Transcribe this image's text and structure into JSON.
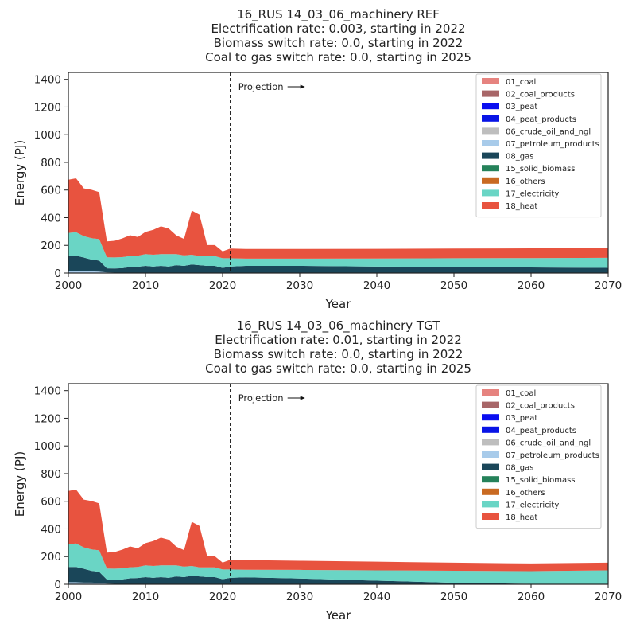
{
  "chart_data": [
    {
      "type": "area",
      "title_lines": [
        "16_RUS 14_03_06_machinery REF",
        "Electrification rate: 0.003, starting in 2022",
        "Biomass switch rate: 0.0, starting in 2022",
        "Coal to gas switch rate: 0.0, starting in 2025"
      ],
      "xlabel": "Year",
      "ylabel": "Energy (PJ)",
      "xlim": [
        2000,
        2070
      ],
      "ylim": [
        0,
        1450
      ],
      "xticks": [
        2000,
        2010,
        2020,
        2030,
        2040,
        2050,
        2060,
        2070
      ],
      "yticks": [
        0,
        200,
        400,
        600,
        800,
        1000,
        1200,
        1400
      ],
      "projection_year": 2021,
      "projection_label": "Projection",
      "legend_position": "top-right",
      "x": [
        2000,
        2001,
        2002,
        2003,
        2004,
        2005,
        2006,
        2007,
        2008,
        2009,
        2010,
        2011,
        2012,
        2013,
        2014,
        2015,
        2016,
        2017,
        2018,
        2019,
        2020,
        2021,
        2023,
        2030,
        2040,
        2050,
        2060,
        2070
      ],
      "series": [
        {
          "name": "01_coal",
          "color": "#e6837f",
          "values": [
            0,
            0,
            0,
            0,
            0,
            0,
            0,
            0,
            0,
            0,
            0,
            0,
            0,
            0,
            0,
            0,
            0,
            0,
            0,
            0,
            0,
            0,
            0,
            0,
            0,
            0,
            0,
            0
          ]
        },
        {
          "name": "02_coal_products",
          "color": "#a86668",
          "values": [
            0,
            0,
            0,
            0,
            0,
            0,
            0,
            0,
            0,
            0,
            0,
            0,
            0,
            0,
            0,
            0,
            0,
            0,
            0,
            0,
            0,
            0,
            0,
            0,
            0,
            0,
            0,
            0
          ]
        },
        {
          "name": "03_peat",
          "color": "#0a0ef0",
          "values": [
            0,
            0,
            0,
            0,
            0,
            0,
            0,
            0,
            0,
            0,
            0,
            0,
            0,
            0,
            0,
            0,
            0,
            0,
            0,
            0,
            0,
            0,
            0,
            0,
            0,
            0,
            0,
            0
          ]
        },
        {
          "name": "04_peat_products",
          "color": "#0814e6",
          "values": [
            0,
            0,
            0,
            0,
            0,
            0,
            0,
            0,
            0,
            0,
            0,
            0,
            0,
            0,
            0,
            0,
            0,
            0,
            0,
            0,
            0,
            0,
            0,
            0,
            0,
            0,
            0,
            0
          ]
        },
        {
          "name": "06_crude_oil_and_ngl",
          "color": "#bebebe",
          "values": [
            0,
            0,
            0,
            0,
            0,
            0,
            0,
            0,
            0,
            0,
            0,
            0,
            0,
            0,
            0,
            0,
            0,
            0,
            0,
            0,
            0,
            0,
            0,
            0,
            0,
            0,
            0,
            0
          ]
        },
        {
          "name": "07_petroleum_products",
          "color": "#a8cbea",
          "values": [
            15,
            15,
            12,
            12,
            10,
            4,
            3,
            3,
            3,
            3,
            2,
            2,
            2,
            2,
            2,
            2,
            2,
            2,
            2,
            2,
            2,
            2,
            2,
            2,
            2,
            2,
            2,
            2
          ]
        },
        {
          "name": "08_gas",
          "color": "#1a4659",
          "values": [
            110,
            110,
            100,
            85,
            80,
            30,
            30,
            32,
            40,
            42,
            50,
            45,
            50,
            45,
            55,
            50,
            60,
            55,
            50,
            50,
            35,
            45,
            50,
            50,
            45,
            42,
            38,
            35
          ]
        },
        {
          "name": "15_solid_biomass",
          "color": "#25825a",
          "values": [
            0,
            0,
            0,
            0,
            0,
            0,
            0,
            0,
            0,
            0,
            0,
            0,
            0,
            0,
            0,
            0,
            0,
            0,
            0,
            0,
            0,
            0,
            0,
            0,
            0,
            0,
            0,
            0
          ]
        },
        {
          "name": "16_others",
          "color": "#c96a22",
          "values": [
            0,
            0,
            0,
            0,
            0,
            0,
            0,
            0,
            0,
            0,
            0,
            0,
            0,
            0,
            0,
            0,
            0,
            0,
            0,
            0,
            0,
            0,
            0,
            0,
            0,
            0,
            0,
            0
          ]
        },
        {
          "name": "17_electricity",
          "color": "#6ad5c5",
          "values": [
            165,
            170,
            155,
            155,
            155,
            80,
            80,
            80,
            80,
            80,
            85,
            85,
            85,
            90,
            80,
            75,
            70,
            65,
            70,
            70,
            70,
            60,
            52,
            52,
            58,
            63,
            68,
            73
          ]
        },
        {
          "name": "18_heat",
          "color": "#e8533f",
          "values": [
            385,
            390,
            345,
            350,
            340,
            115,
            120,
            135,
            150,
            135,
            160,
            180,
            200,
            185,
            135,
            120,
            320,
            300,
            80,
            80,
            50,
            70,
            70,
            70,
            70,
            70,
            70,
            70
          ]
        }
      ]
    },
    {
      "type": "area",
      "title_lines": [
        "16_RUS 14_03_06_machinery TGT",
        "Electrification rate: 0.01, starting in 2022",
        "Biomass switch rate: 0.0, starting in 2022",
        "Coal to gas switch rate: 0.0, starting in 2025"
      ],
      "xlabel": "Year",
      "ylabel": "Energy (PJ)",
      "xlim": [
        2000,
        2070
      ],
      "ylim": [
        0,
        1450
      ],
      "xticks": [
        2000,
        2010,
        2020,
        2030,
        2040,
        2050,
        2060,
        2070
      ],
      "yticks": [
        0,
        200,
        400,
        600,
        800,
        1000,
        1200,
        1400
      ],
      "projection_year": 2021,
      "projection_label": "Projection",
      "legend_position": "top-right",
      "x": [
        2000,
        2001,
        2002,
        2003,
        2004,
        2005,
        2006,
        2007,
        2008,
        2009,
        2010,
        2011,
        2012,
        2013,
        2014,
        2015,
        2016,
        2017,
        2018,
        2019,
        2020,
        2021,
        2023,
        2030,
        2040,
        2050,
        2060,
        2070
      ],
      "series": [
        {
          "name": "01_coal",
          "color": "#e6837f",
          "values": [
            0,
            0,
            0,
            0,
            0,
            0,
            0,
            0,
            0,
            0,
            0,
            0,
            0,
            0,
            0,
            0,
            0,
            0,
            0,
            0,
            0,
            0,
            0,
            0,
            0,
            0,
            0,
            0
          ]
        },
        {
          "name": "02_coal_products",
          "color": "#a86668",
          "values": [
            0,
            0,
            0,
            0,
            0,
            0,
            0,
            0,
            0,
            0,
            0,
            0,
            0,
            0,
            0,
            0,
            0,
            0,
            0,
            0,
            0,
            0,
            0,
            0,
            0,
            0,
            0,
            0
          ]
        },
        {
          "name": "03_peat",
          "color": "#0a0ef0",
          "values": [
            0,
            0,
            0,
            0,
            0,
            0,
            0,
            0,
            0,
            0,
            0,
            0,
            0,
            0,
            0,
            0,
            0,
            0,
            0,
            0,
            0,
            0,
            0,
            0,
            0,
            0,
            0,
            0
          ]
        },
        {
          "name": "04_peat_products",
          "color": "#0814e6",
          "values": [
            0,
            0,
            0,
            0,
            0,
            0,
            0,
            0,
            0,
            0,
            0,
            0,
            0,
            0,
            0,
            0,
            0,
            0,
            0,
            0,
            0,
            0,
            0,
            0,
            0,
            0,
            0,
            0
          ]
        },
        {
          "name": "06_crude_oil_and_ngl",
          "color": "#bebebe",
          "values": [
            0,
            0,
            0,
            0,
            0,
            0,
            0,
            0,
            0,
            0,
            0,
            0,
            0,
            0,
            0,
            0,
            0,
            0,
            0,
            0,
            0,
            0,
            0,
            0,
            0,
            0,
            0,
            0
          ]
        },
        {
          "name": "07_petroleum_products",
          "color": "#a8cbea",
          "values": [
            15,
            15,
            12,
            12,
            10,
            4,
            3,
            3,
            3,
            3,
            2,
            2,
            2,
            2,
            2,
            2,
            2,
            2,
            2,
            2,
            2,
            2,
            2,
            2,
            1,
            1,
            0,
            0
          ]
        },
        {
          "name": "08_gas",
          "color": "#1a4659",
          "values": [
            110,
            110,
            100,
            85,
            80,
            30,
            30,
            32,
            40,
            42,
            50,
            45,
            50,
            45,
            55,
            50,
            60,
            55,
            50,
            50,
            35,
            45,
            48,
            40,
            25,
            10,
            3,
            1
          ]
        },
        {
          "name": "15_solid_biomass",
          "color": "#25825a",
          "values": [
            0,
            0,
            0,
            0,
            0,
            0,
            0,
            0,
            0,
            0,
            0,
            0,
            0,
            0,
            0,
            0,
            0,
            0,
            0,
            0,
            0,
            0,
            0,
            0,
            0,
            0,
            0,
            0
          ]
        },
        {
          "name": "16_others",
          "color": "#c96a22",
          "values": [
            0,
            0,
            0,
            0,
            0,
            0,
            0,
            0,
            0,
            0,
            0,
            0,
            0,
            0,
            0,
            0,
            0,
            0,
            0,
            0,
            0,
            0,
            0,
            0,
            0,
            0,
            0,
            0
          ]
        },
        {
          "name": "17_electricity",
          "color": "#6ad5c5",
          "values": [
            165,
            170,
            155,
            155,
            155,
            80,
            80,
            80,
            80,
            80,
            85,
            85,
            85,
            90,
            80,
            75,
            70,
            65,
            70,
            70,
            70,
            60,
            55,
            62,
            75,
            87,
            92,
            100
          ]
        },
        {
          "name": "18_heat",
          "color": "#e8533f",
          "values": [
            385,
            390,
            345,
            350,
            340,
            115,
            120,
            135,
            150,
            135,
            160,
            180,
            200,
            185,
            135,
            120,
            320,
            300,
            80,
            80,
            50,
            70,
            70,
            66,
            62,
            58,
            55,
            55
          ]
        }
      ]
    }
  ]
}
